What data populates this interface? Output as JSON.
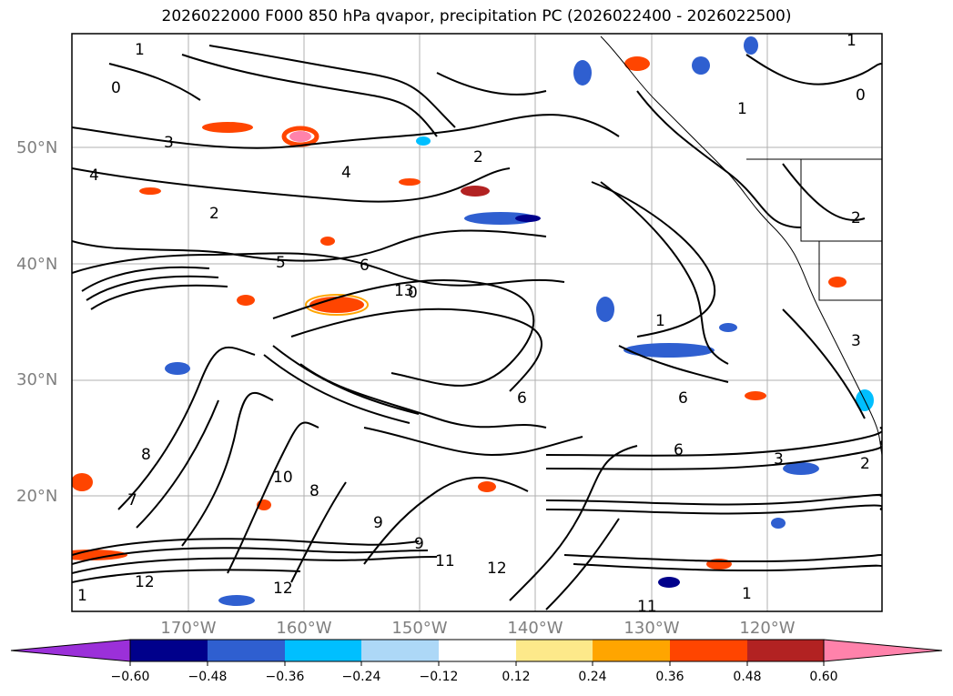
{
  "title": "2026022000 F000 850 hPa qvapor, precipitation PC (2026022400 - 2026022500)",
  "lat_labels": [
    "50°N",
    "40°N",
    "30°N",
    "20°N"
  ],
  "lon_labels": [
    "170°W",
    "160°W",
    "150°W",
    "140°W",
    "130°W",
    "120°W"
  ],
  "colorbar": {
    "tick_labels": [
      "−0.60",
      "−0.48",
      "−0.36",
      "−0.24",
      "−0.12",
      "0.12",
      "0.24",
      "0.36",
      "0.48",
      "0.60"
    ],
    "colors": [
      "#9b30d9",
      "#00008b",
      "#2f5fd0",
      "#00bfff",
      "#add8f7",
      "#ffffff",
      "#fde98a",
      "#ffa500",
      "#ff4500",
      "#b22222",
      "#ff82ab"
    ]
  },
  "contour_labels": [
    "1",
    "0",
    "2",
    "3",
    "4",
    "5",
    "6",
    "7",
    "8",
    "9",
    "10",
    "11",
    "12",
    "13",
    "0",
    "1",
    "2",
    "1",
    "6",
    "6",
    "8",
    "9",
    "11",
    "12",
    "12",
    "1",
    "2",
    "3",
    "4",
    "6",
    "0",
    "1",
    "1",
    "2",
    "3"
  ]
}
